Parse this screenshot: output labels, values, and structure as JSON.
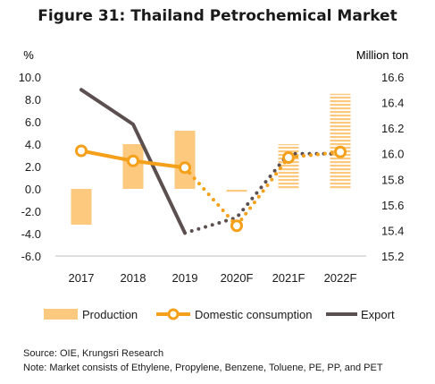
{
  "chart_data": {
    "type": "bar",
    "title": "Figure 31: Thailand Petrochemical Market",
    "categories": [
      "2017",
      "2018",
      "2019",
      "2020F",
      "2021F",
      "2022F"
    ],
    "y_left": {
      "label": "%",
      "min": -6.0,
      "max": 10.0,
      "ticks": [
        "10.0",
        "8.0",
        "6.0",
        "4.0",
        "2.0",
        "0.0",
        "-2.0",
        "-4.0",
        "-6.0"
      ]
    },
    "y_right": {
      "label": "Million ton",
      "min": 15.2,
      "max": 16.6,
      "ticks": [
        "16.6",
        "16.4",
        "16.2",
        "16.0",
        "15.8",
        "15.6",
        "15.4",
        "15.2"
      ]
    },
    "series": [
      {
        "name": "Production",
        "kind": "bar",
        "axis": "left",
        "color": "#fcc97e",
        "values": [
          -3.2,
          4.0,
          5.2,
          -0.3,
          4.0,
          8.5
        ],
        "forecast": [
          false,
          false,
          false,
          true,
          true,
          true
        ]
      },
      {
        "name": "Domestic consumption",
        "kind": "line",
        "axis": "left",
        "color": "#f5a01a",
        "values": [
          3.4,
          2.5,
          1.9,
          -3.3,
          2.8,
          3.3
        ]
      },
      {
        "name": "Export",
        "kind": "line",
        "axis": "right",
        "color": "#5b4f4f",
        "values": [
          16.5,
          16.23,
          15.38,
          15.5,
          16.0,
          16.0
        ]
      }
    ],
    "forecast_from_index": 2,
    "legend_position": "bottom"
  },
  "notes": {
    "source": "Source: OIE, Krungsri Research",
    "note": "Note: Market consists of Ethylene, Propylene, Benzene, Toluene, PE, PP, and PET"
  }
}
